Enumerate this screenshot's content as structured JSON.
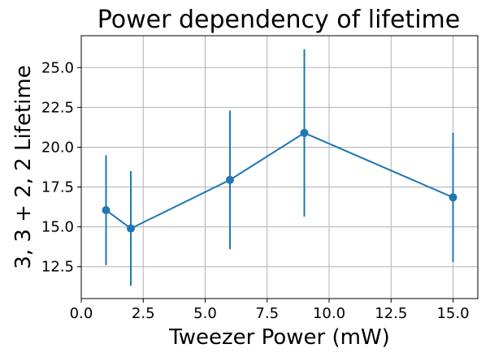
{
  "chart_data": {
    "type": "line",
    "title": "Power dependency of lifetime",
    "xlabel": "Tweezer Power (mW)",
    "ylabel": "3, 3 + 2, 2 Lifetime",
    "xlim": [
      0.0,
      16.0
    ],
    "ylim": [
      10.5,
      27.0
    ],
    "xticks": [
      "0.0",
      "2.5",
      "5.0",
      "7.5",
      "10.0",
      "12.5",
      "15.0"
    ],
    "yticks": [
      "12.5",
      "15.0",
      "17.5",
      "20.0",
      "22.5",
      "25.0"
    ],
    "grid": true,
    "series": [
      {
        "x": [
          1,
          2,
          6,
          9,
          15
        ],
        "y": [
          16.05,
          14.9,
          17.95,
          20.9,
          16.85
        ],
        "yerr": [
          3.45,
          3.6,
          4.35,
          5.25,
          4.05
        ],
        "color": "#1f77b4",
        "marker": "circle"
      }
    ]
  }
}
